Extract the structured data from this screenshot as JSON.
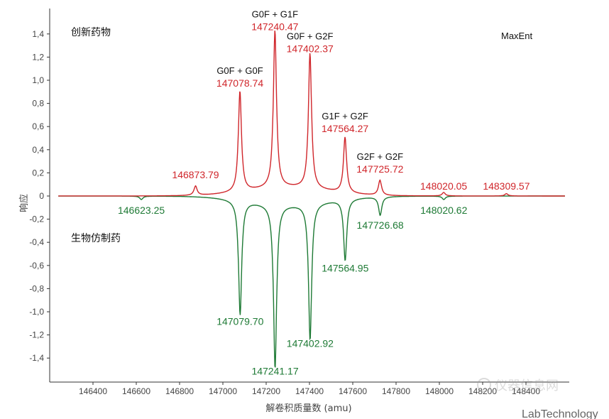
{
  "chart_data": {
    "type": "line",
    "xlabel": "解卷积质量数 (amu)",
    "ylabel": "响应",
    "xlim": [
      146200,
      148600
    ],
    "ylim": [
      -1.55,
      1.55
    ],
    "x_ticks": [
      146400,
      146600,
      146800,
      147000,
      147200,
      147400,
      147600,
      147800,
      148000,
      148200,
      148400
    ],
    "y_ticks": [
      1.4,
      1.2,
      1.0,
      0.8,
      0.6,
      0.4,
      0.2,
      0,
      -0.2,
      -0.4,
      -0.6,
      -0.8,
      -1.0,
      -1.2,
      -1.4
    ],
    "y_tick_labels": [
      "1,4",
      "1,2",
      "1,0",
      "0,8",
      "0,6",
      "0,4",
      "0,2",
      "0",
      "-0,2",
      "-0,4",
      "-0,6",
      "-0,8",
      "-1,0",
      "-1,2",
      "-1,4"
    ],
    "method_label": "MaxEnt",
    "series": [
      {
        "name": "创新药物",
        "color": "#d0262b",
        "direction": "up",
        "peaks": [
          {
            "x": 146873.79,
            "y": 0.08,
            "label": "146873.79"
          },
          {
            "x": 147078.74,
            "y": 0.87,
            "label": "147078.74",
            "glycoform": "G0F + G0F"
          },
          {
            "x": 147240.47,
            "y": 1.36,
            "label": "147240.47",
            "glycoform": "G0F + G1F"
          },
          {
            "x": 147402.37,
            "y": 1.17,
            "label": "147402.37",
            "glycoform": "G0F + G2F"
          },
          {
            "x": 147564.27,
            "y": 0.48,
            "label": "147564.27",
            "glycoform": "G1F + G2F"
          },
          {
            "x": 147725.72,
            "y": 0.13,
            "label": "147725.72",
            "glycoform": "G2F + G2F"
          },
          {
            "x": 148020.05,
            "y": 0.03,
            "label": "148020.05"
          },
          {
            "x": 148309.57,
            "y": 0.02,
            "label": "148309.57"
          }
        ]
      },
      {
        "name": "生物仿制药",
        "color": "#1e7a35",
        "direction": "down",
        "peaks": [
          {
            "x": 146623.25,
            "y": -0.03,
            "label": "146623.25"
          },
          {
            "x": 147079.7,
            "y": -0.99,
            "label": "147079.70"
          },
          {
            "x": 147241.17,
            "y": -1.42,
            "label": "147241.17"
          },
          {
            "x": 147402.92,
            "y": -1.18,
            "label": "147402.92"
          },
          {
            "x": 147564.95,
            "y": -0.53,
            "label": "147564.95"
          },
          {
            "x": 147726.68,
            "y": -0.16,
            "label": "147726.68"
          },
          {
            "x": 148020.62,
            "y": -0.03,
            "label": "148020.62"
          }
        ]
      }
    ]
  },
  "watermark": {
    "site": "仪器信息网",
    "brand": "LabTechnology"
  }
}
